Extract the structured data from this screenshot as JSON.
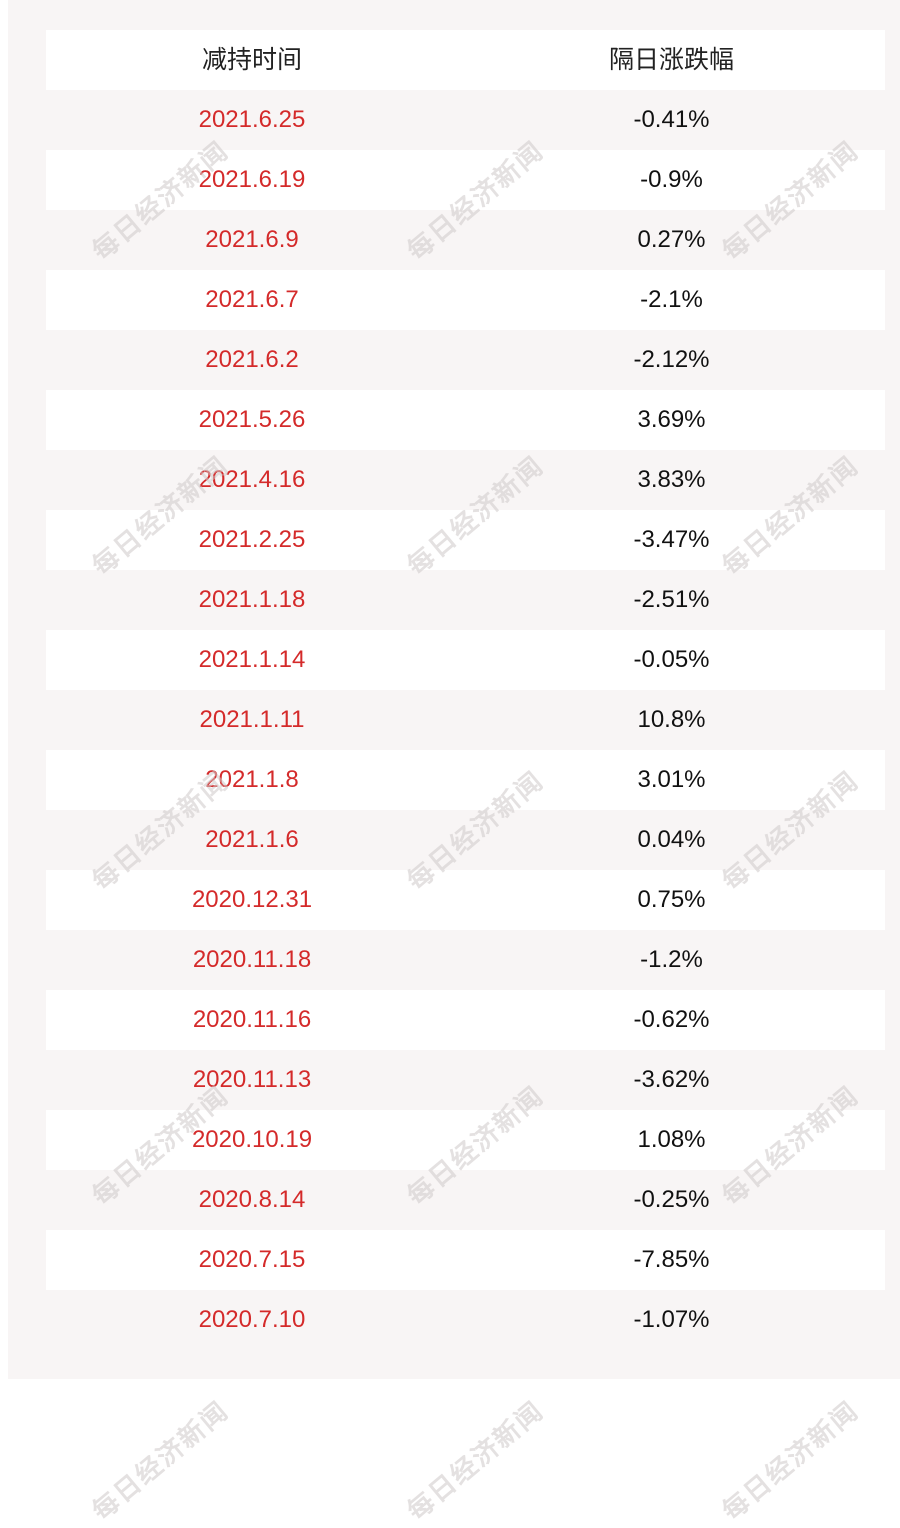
{
  "table": {
    "headers": [
      "减持时间",
      "隔日涨跌幅"
    ],
    "rows": [
      {
        "date": "2021.6.25",
        "change": "-0.41%"
      },
      {
        "date": "2021.6.19",
        "change": "-0.9%"
      },
      {
        "date": "2021.6.9",
        "change": "0.27%"
      },
      {
        "date": "2021.6.7",
        "change": "-2.1%"
      },
      {
        "date": "2021.6.2",
        "change": "-2.12%"
      },
      {
        "date": "2021.5.26",
        "change": "3.69%"
      },
      {
        "date": "2021.4.16",
        "change": "3.83%"
      },
      {
        "date": "2021.2.25",
        "change": "-3.47%"
      },
      {
        "date": "2021.1.18",
        "change": "-2.51%"
      },
      {
        "date": "2021.1.14",
        "change": "-0.05%"
      },
      {
        "date": "2021.1.11",
        "change": "10.8%"
      },
      {
        "date": "2021.1.8",
        "change": "3.01%"
      },
      {
        "date": "2021.1.6",
        "change": "0.04%"
      },
      {
        "date": "2020.12.31",
        "change": "0.75%"
      },
      {
        "date": "2020.11.18",
        "change": "-1.2%"
      },
      {
        "date": "2020.11.16",
        "change": "-0.62%"
      },
      {
        "date": "2020.11.13",
        "change": "-3.62%"
      },
      {
        "date": "2020.10.19",
        "change": "1.08%"
      },
      {
        "date": "2020.8.14",
        "change": "-0.25%"
      },
      {
        "date": "2020.7.15",
        "change": "-7.85%"
      },
      {
        "date": "2020.7.10",
        "change": "-1.07%"
      }
    ]
  },
  "watermark": "每日经济新闻",
  "colors": {
    "date_text": "#d42a2a",
    "value_text": "#111111",
    "header_text": "#222222",
    "panel_bg": "#f8f5f5",
    "row_bg": "#ffffff"
  }
}
